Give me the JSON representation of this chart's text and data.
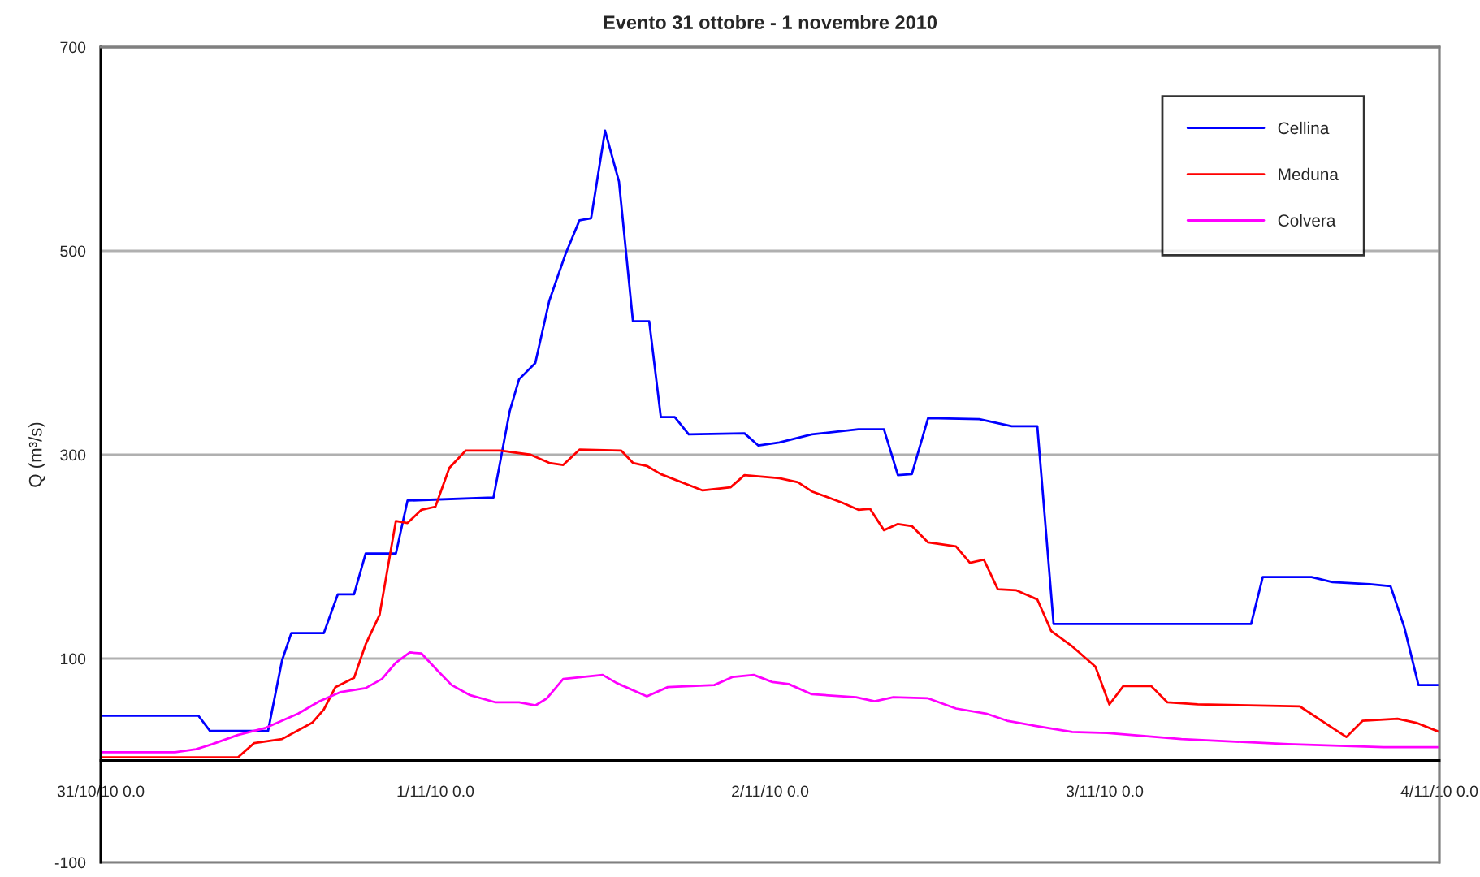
{
  "chart_data": {
    "type": "line",
    "title": "Evento 31 ottobre - 1 novembre 2010",
    "ylabel": "Q (m³/s)",
    "xlim": [
      "2010-10-31T00:00",
      "2010-11-04T00:00"
    ],
    "xticks": [
      {
        "value": "2010-10-31T00:00",
        "label": "31/10/10 0.0"
      },
      {
        "value": "2010-11-01T00:00",
        "label": "1/11/10 0.0"
      },
      {
        "value": "2010-11-02T00:00",
        "label": "2/11/10 0.0"
      },
      {
        "value": "2010-11-03T00:00",
        "label": "3/11/10 0.0"
      },
      {
        "value": "2010-11-04T00:00",
        "label": "4/11/10 0.0"
      }
    ],
    "ylim": [
      -100,
      700
    ],
    "yticks": [
      -100,
      100,
      300,
      500,
      700
    ],
    "grid": "y",
    "legend": "top right",
    "line_style": "solid",
    "marker": "none",
    "series": [
      {
        "name": "Cellina",
        "color": "#0000ff",
        "x": [
          "2010-10-31T00:00",
          "2010-10-31T07:00",
          "2010-10-31T07:50",
          "2010-10-31T12:00",
          "2010-10-31T13:00",
          "2010-10-31T13:40",
          "2010-10-31T16:00",
          "2010-10-31T17:00",
          "2010-10-31T18:10",
          "2010-10-31T19:00",
          "2010-10-31T21:10",
          "2010-10-31T22:00",
          "2010-11-01T04:10",
          "2010-11-01T05:20",
          "2010-11-01T06:00",
          "2010-11-01T07:10",
          "2010-11-01T08:10",
          "2010-11-01T09:20",
          "2010-11-01T10:20",
          "2010-11-01T11:10",
          "2010-11-01T12:10",
          "2010-11-01T13:10",
          "2010-11-01T14:10",
          "2010-11-01T15:20",
          "2010-11-01T16:10",
          "2010-11-01T17:10",
          "2010-11-01T18:10",
          "2010-11-01T22:10",
          "2010-11-01T23:10",
          "2010-11-02T00:40",
          "2010-11-02T03:00",
          "2010-11-02T06:20",
          "2010-11-02T08:10",
          "2010-11-02T09:10",
          "2010-11-02T10:10",
          "2010-11-02T11:20",
          "2010-11-02T15:00",
          "2010-11-02T17:20",
          "2010-11-02T19:10",
          "2010-11-02T20:20",
          "2010-11-03T10:30",
          "2010-11-03T11:20",
          "2010-11-03T14:50",
          "2010-11-03T16:20",
          "2010-11-03T19:00",
          "2010-11-03T20:30",
          "2010-11-03T21:30",
          "2010-11-03T22:30",
          "2010-11-04T00:00"
        ],
        "values": [
          44,
          44,
          29,
          29,
          98,
          125,
          125,
          163,
          163,
          203,
          203,
          255,
          258,
          343,
          374,
          390,
          451,
          497,
          530,
          532,
          618,
          568,
          431,
          431,
          337,
          337,
          320,
          321,
          309,
          312,
          320,
          325,
          325,
          280,
          281,
          336,
          335,
          328,
          328,
          134,
          134,
          180,
          180,
          175,
          173,
          171,
          130,
          74,
          74
        ]
      },
      {
        "name": "Meduna",
        "color": "#ff0000",
        "x": [
          "2010-10-31T00:00",
          "2010-10-31T09:50",
          "2010-10-31T11:00",
          "2010-10-31T13:00",
          "2010-10-31T15:10",
          "2010-10-31T16:00",
          "2010-10-31T16:50",
          "2010-10-31T18:10",
          "2010-10-31T19:00",
          "2010-10-31T20:00",
          "2010-10-31T21:10",
          "2010-10-31T22:00",
          "2010-10-31T23:00",
          "2010-11-01T00:00",
          "2010-11-01T01:00",
          "2010-11-01T02:10",
          "2010-11-01T04:40",
          "2010-11-01T06:50",
          "2010-11-01T08:10",
          "2010-11-01T09:10",
          "2010-11-01T10:20",
          "2010-11-01T13:20",
          "2010-11-01T14:10",
          "2010-11-01T15:10",
          "2010-11-01T16:10",
          "2010-11-01T19:10",
          "2010-11-01T21:10",
          "2010-11-01T22:10",
          "2010-11-02T00:40",
          "2010-11-02T02:00",
          "2010-11-02T03:00",
          "2010-11-02T05:10",
          "2010-11-02T06:20",
          "2010-11-02T07:10",
          "2010-11-02T08:10",
          "2010-11-02T09:10",
          "2010-11-02T10:10",
          "2010-11-02T11:20",
          "2010-11-02T13:20",
          "2010-11-02T14:20",
          "2010-11-02T15:20",
          "2010-11-02T16:20",
          "2010-11-02T17:40",
          "2010-11-02T19:10",
          "2010-11-02T20:10",
          "2010-11-02T21:40",
          "2010-11-02T23:20",
          "2010-11-03T00:20",
          "2010-11-03T01:20",
          "2010-11-03T03:20",
          "2010-11-03T04:30",
          "2010-11-03T06:40",
          "2010-11-03T14:00",
          "2010-11-03T16:20",
          "2010-11-03T17:20",
          "2010-11-03T18:30",
          "2010-11-03T21:00",
          "2010-11-03T22:20",
          "2010-11-04T00:00"
        ],
        "values": [
          3,
          3,
          17,
          21,
          37,
          50,
          72,
          81,
          114,
          143,
          235,
          233,
          246,
          249,
          287,
          304,
          304,
          300,
          292,
          290,
          305,
          304,
          292,
          289,
          281,
          265,
          268,
          280,
          277,
          273,
          264,
          253,
          246,
          247,
          226,
          232,
          230,
          214,
          210,
          194,
          197,
          168,
          167,
          158,
          127,
          112,
          92,
          55,
          73,
          73,
          57,
          55,
          53,
          32,
          23,
          39,
          41,
          37,
          28
        ]
      },
      {
        "name": "Colvera",
        "color": "#ff00ff",
        "x": [
          "2010-10-31T00:00",
          "2010-10-31T05:20",
          "2010-10-31T06:50",
          "2010-10-31T08:00",
          "2010-10-31T09:50",
          "2010-10-31T11:50",
          "2010-10-31T14:10",
          "2010-10-31T15:40",
          "2010-10-31T17:10",
          "2010-10-31T19:00",
          "2010-10-31T20:10",
          "2010-10-31T21:10",
          "2010-10-31T22:10",
          "2010-10-31T23:00",
          "2010-11-01T00:10",
          "2010-11-01T01:10",
          "2010-11-01T02:30",
          "2010-11-01T04:20",
          "2010-11-01T06:00",
          "2010-11-01T07:10",
          "2010-11-01T08:00",
          "2010-11-01T09:10",
          "2010-11-01T12:00",
          "2010-11-01T13:00",
          "2010-11-01T15:10",
          "2010-11-01T16:40",
          "2010-11-01T20:00",
          "2010-11-01T21:20",
          "2010-11-01T22:50",
          "2010-11-02T00:10",
          "2010-11-02T01:20",
          "2010-11-02T03:00",
          "2010-11-02T06:10",
          "2010-11-02T07:30",
          "2010-11-02T08:50",
          "2010-11-02T11:20",
          "2010-11-02T13:20",
          "2010-11-02T15:30",
          "2010-11-02T17:00",
          "2010-11-02T19:00",
          "2010-11-02T21:40",
          "2010-11-03T00:10",
          "2010-11-03T05:30",
          "2010-11-03T13:10",
          "2010-11-03T20:00",
          "2010-11-04T00:00"
        ],
        "values": [
          8,
          8,
          11,
          16,
          25,
          32,
          46,
          58,
          67,
          71,
          80,
          96,
          106,
          105,
          88,
          74,
          64,
          57,
          57,
          54,
          61,
          80,
          84,
          76,
          63,
          72,
          74,
          82,
          84,
          77,
          75,
          65,
          62,
          58,
          62,
          61,
          51,
          46,
          39,
          34,
          28,
          27,
          21,
          16,
          13,
          13
        ]
      }
    ]
  }
}
